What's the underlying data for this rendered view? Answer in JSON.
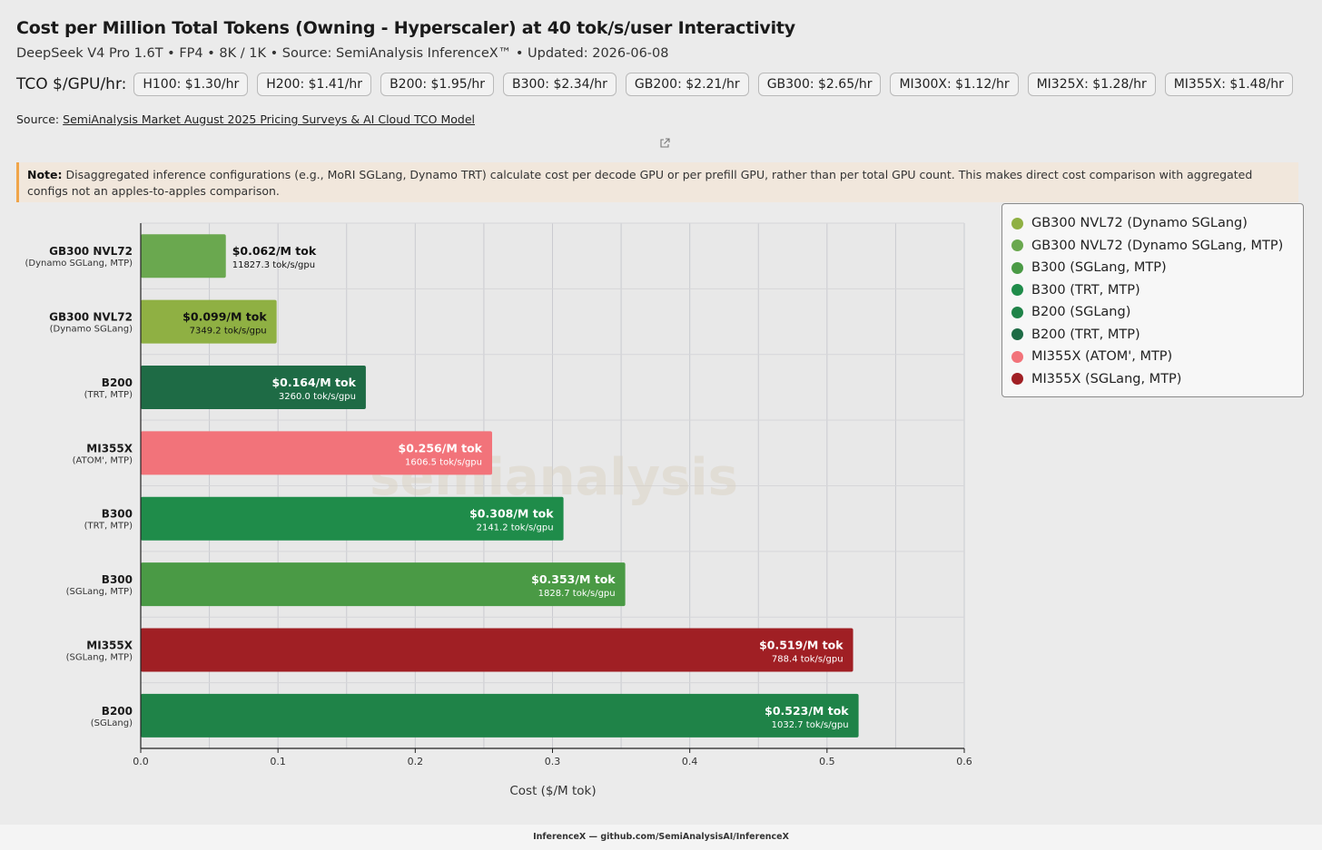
{
  "header": {
    "title": "Cost per Million Total Tokens (Owning - Hyperscaler) at 40 tok/s/user Interactivity",
    "subtitle": "DeepSeek V4 Pro 1.6T • FP4 • 8K / 1K • Source: SemiAnalysis InferenceX™ • Updated: 2026-06-08"
  },
  "tco": {
    "label": "TCO $/GPU/hr:",
    "chips": [
      "H100: $1.30/hr",
      "H200: $1.41/hr",
      "B200: $1.95/hr",
      "B300: $2.34/hr",
      "GB200: $2.21/hr",
      "GB300: $2.65/hr",
      "MI300X: $1.12/hr",
      "MI325X: $1.28/hr",
      "MI355X: $1.48/hr"
    ]
  },
  "source": {
    "prefix": "Source:",
    "link_text": "SemiAnalysis Market August 2025 Pricing Surveys & AI Cloud TCO Model"
  },
  "note": {
    "label": "Note:",
    "text": "Disaggregated inference configurations (e.g., MoRI SGLang, Dynamo TRT) calculate cost per decode GPU or per prefill GPU, rather than per total GPU count. This makes direct cost comparison with aggregated configs not an apples-to-apples comparison."
  },
  "watermark": "semianalysis",
  "footer": "InferenceX — github.com/SemiAnalysisAI/InferenceX",
  "chart_data": {
    "type": "bar",
    "orientation": "horizontal",
    "xlabel": "Cost ($/M tok)",
    "xlim": [
      0,
      0.6
    ],
    "xticks": [
      0.0,
      0.1,
      0.2,
      0.3,
      0.4,
      0.5,
      0.6
    ],
    "grid": true,
    "legend_position": "top-right",
    "bars": [
      {
        "name": "GB300 NVL72",
        "sub": "(Dynamo SGLang, MTP)",
        "value": 0.062,
        "value_label": "$0.062/M tok",
        "throughput_label": "11827.3 tok/s/gpu",
        "color": "#6aa84f"
      },
      {
        "name": "GB300 NVL72",
        "sub": "(Dynamo SGLang)",
        "value": 0.099,
        "value_label": "$0.099/M tok",
        "throughput_label": "7349.2 tok/s/gpu",
        "color": "#8fb043"
      },
      {
        "name": "B200",
        "sub": "(TRT, MTP)",
        "value": 0.164,
        "value_label": "$0.164/M tok",
        "throughput_label": "3260.0 tok/s/gpu",
        "color": "#1e6b45"
      },
      {
        "name": "MI355X",
        "sub": "(ATOM', MTP)",
        "value": 0.256,
        "value_label": "$0.256/M tok",
        "throughput_label": "1606.5 tok/s/gpu",
        "color": "#f2737a"
      },
      {
        "name": "B300",
        "sub": "(TRT, MTP)",
        "value": 0.308,
        "value_label": "$0.308/M tok",
        "throughput_label": "2141.2 tok/s/gpu",
        "color": "#1f8c4a"
      },
      {
        "name": "B300",
        "sub": "(SGLang, MTP)",
        "value": 0.353,
        "value_label": "$0.353/M tok",
        "throughput_label": "1828.7 tok/s/gpu",
        "color": "#4a9a45"
      },
      {
        "name": "MI355X",
        "sub": "(SGLang, MTP)",
        "value": 0.519,
        "value_label": "$0.519/M tok",
        "throughput_label": "788.4 tok/s/gpu",
        "color": "#a01f24"
      },
      {
        "name": "B200",
        "sub": "(SGLang)",
        "value": 0.523,
        "value_label": "$0.523/M tok",
        "throughput_label": "1032.7 tok/s/gpu",
        "color": "#1f8348"
      }
    ],
    "legend": [
      {
        "label": "GB300 NVL72 (Dynamo SGLang)",
        "color": "#8fb043"
      },
      {
        "label": "GB300 NVL72 (Dynamo SGLang, MTP)",
        "color": "#6aa84f"
      },
      {
        "label": "B300 (SGLang, MTP)",
        "color": "#4a9a45"
      },
      {
        "label": "B300 (TRT, MTP)",
        "color": "#1f8c4a"
      },
      {
        "label": "B200 (SGLang)",
        "color": "#1f8348"
      },
      {
        "label": "B200 (TRT, MTP)",
        "color": "#1e6b45"
      },
      {
        "label": "MI355X (ATOM', MTP)",
        "color": "#f2737a"
      },
      {
        "label": "MI355X (SGLang, MTP)",
        "color": "#a01f24"
      }
    ]
  }
}
